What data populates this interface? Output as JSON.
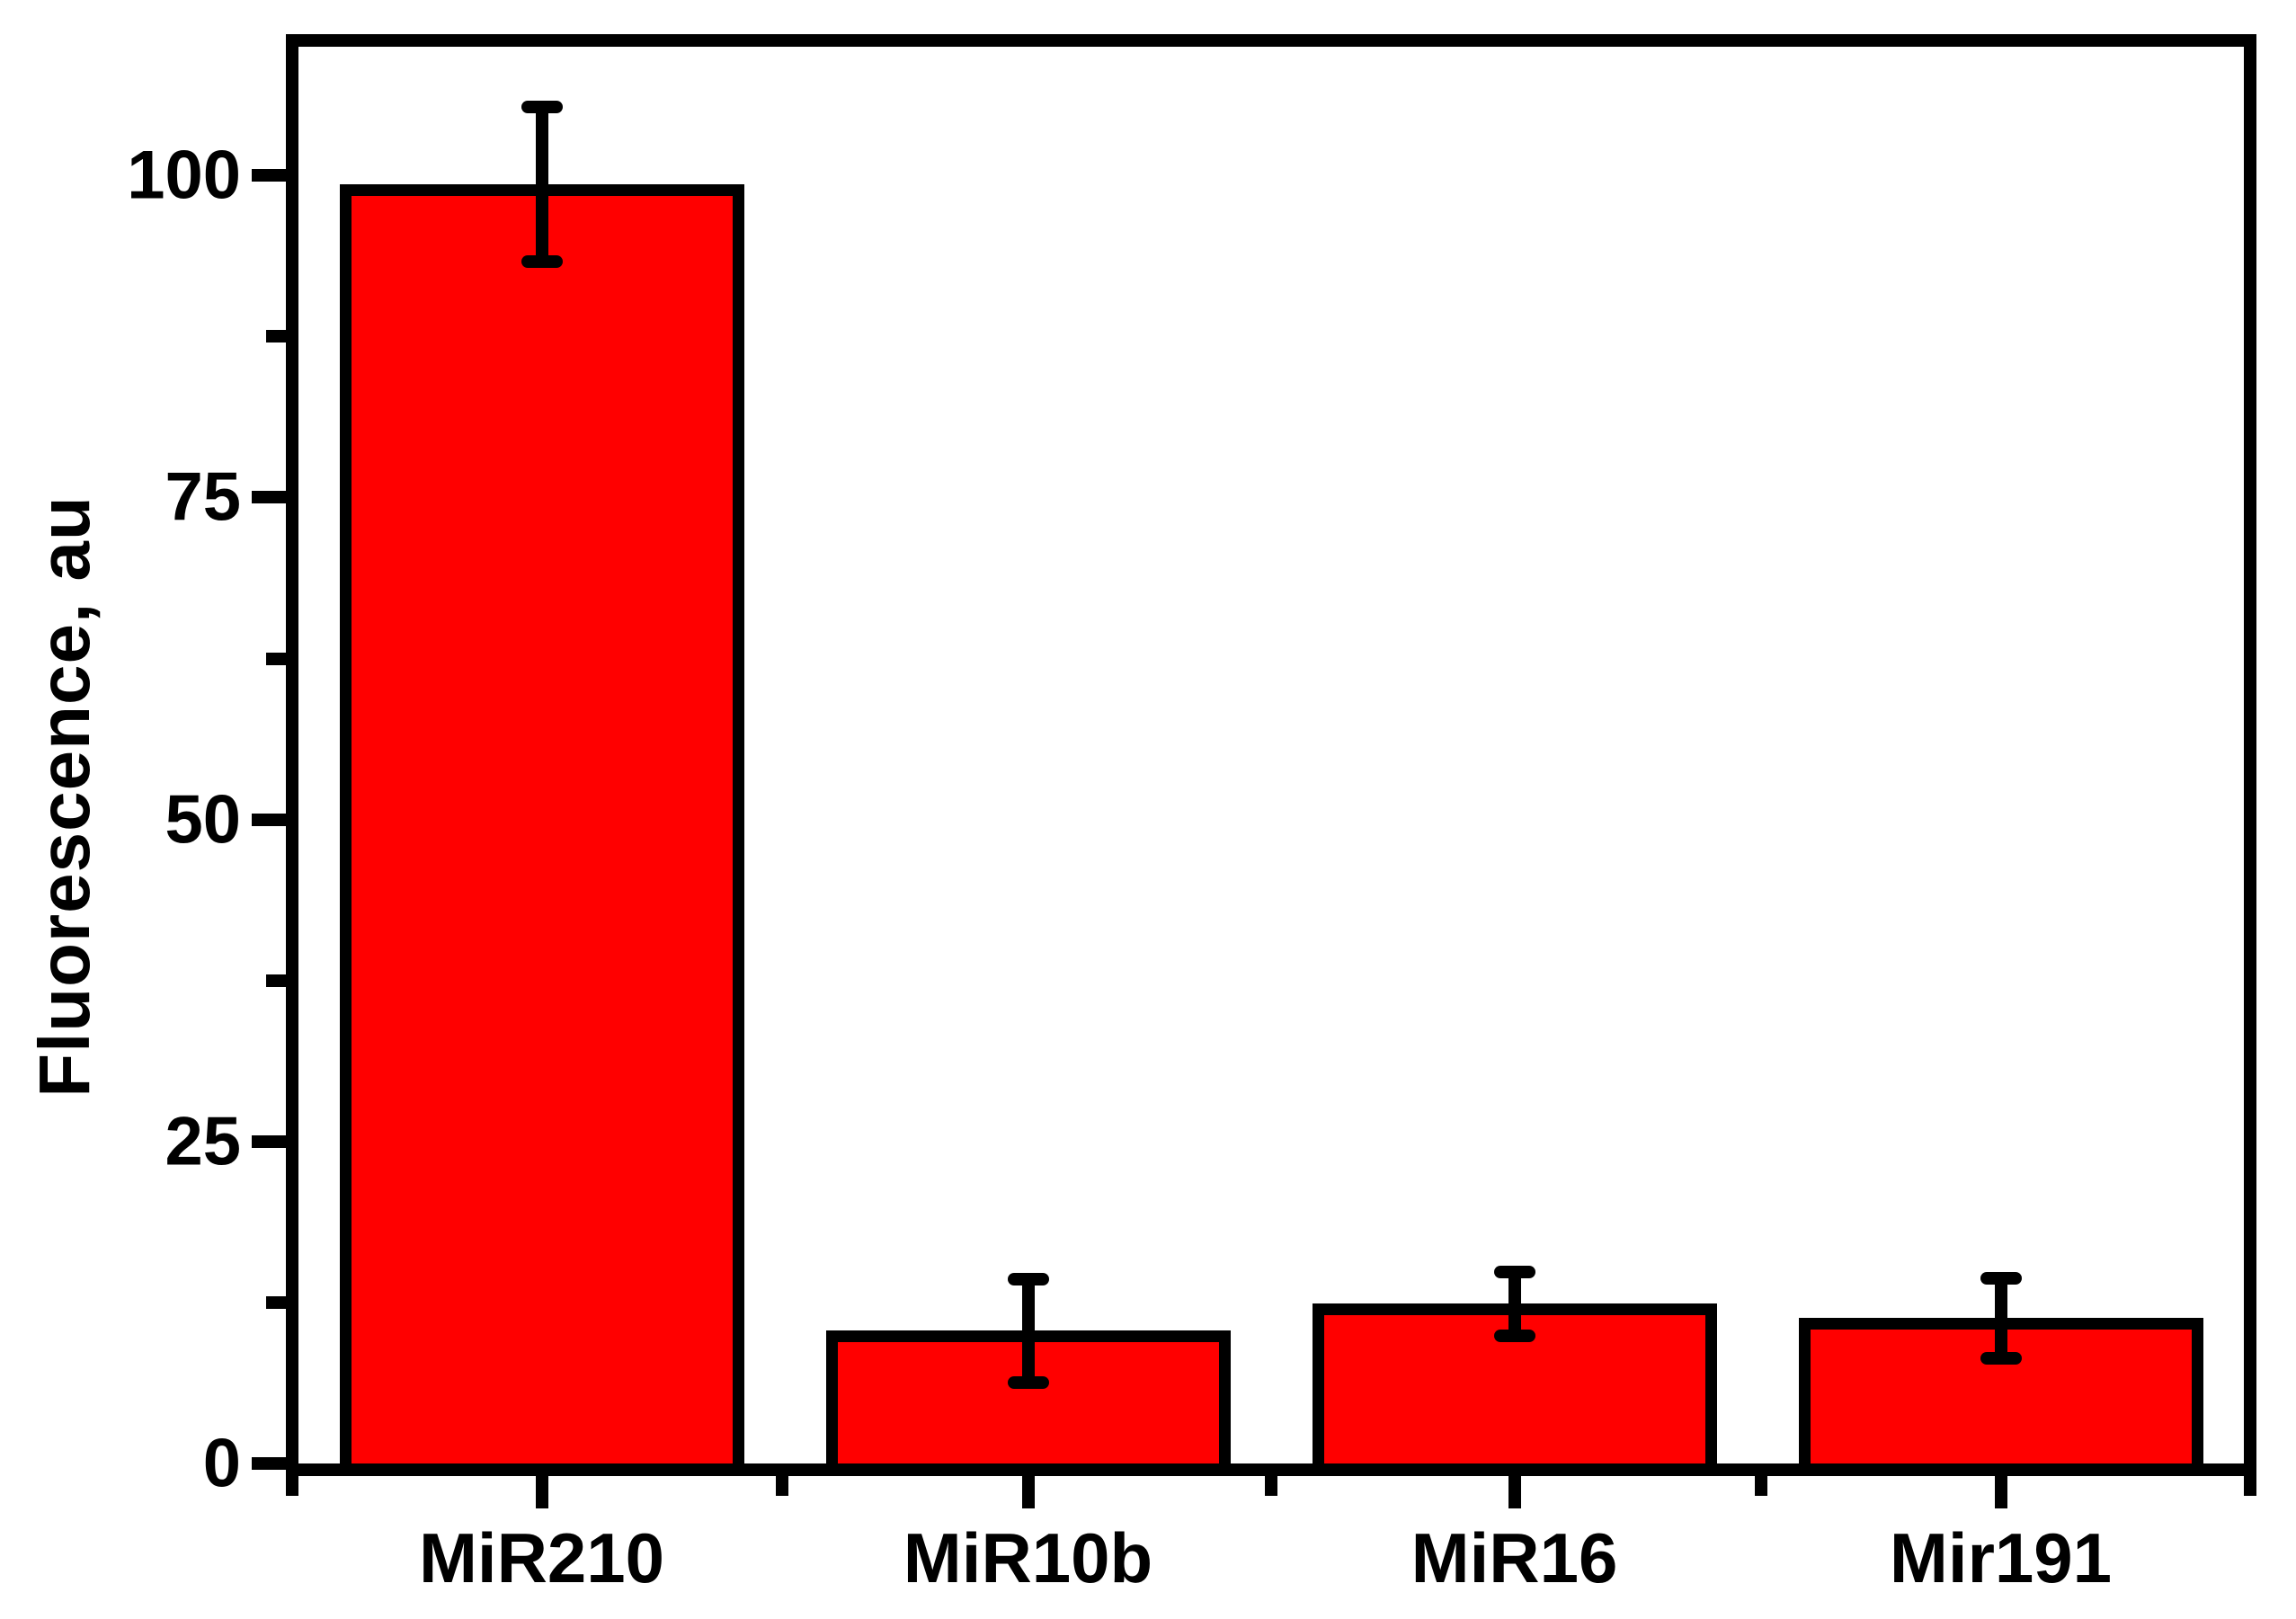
{
  "chart_data": {
    "type": "bar",
    "title": "",
    "xlabel": "",
    "ylabel": "Fluorescence, au",
    "categories": [
      "MiR210",
      "MiR10b",
      "MiR16",
      "Mir191"
    ],
    "values": [
      99.3,
      10.3,
      12.4,
      11.3
    ],
    "errors": [
      6.0,
      4.0,
      2.5,
      3.1
    ],
    "y_major_ticks": [
      0,
      25,
      50,
      75,
      100
    ],
    "y_major_tick_labels": [
      "0",
      "25",
      "50",
      "75",
      "100"
    ],
    "y_minor_ticks": [
      12.5,
      37.5,
      62.5,
      87.5
    ],
    "ylim": [
      0,
      110
    ],
    "bar_color": "#ff0000",
    "bar_border_color": "#000000",
    "axis_color": "#000000",
    "background_color": "#ffffff",
    "grid": false,
    "legend": false,
    "error_bars": true,
    "tick_direction": "out"
  }
}
